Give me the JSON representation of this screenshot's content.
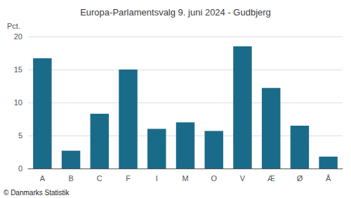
{
  "chart_data": {
    "type": "bar",
    "title": "Europa-Parlamentsvalg 9. juni 2024 - Gudbjerg",
    "categories": [
      "A",
      "B",
      "C",
      "F",
      "I",
      "M",
      "O",
      "V",
      "Æ",
      "Ø",
      "Å"
    ],
    "values": [
      16.7,
      2.7,
      8.3,
      15.0,
      6.0,
      7.0,
      5.7,
      18.5,
      12.2,
      6.5,
      1.8
    ],
    "color": "#1a6b8a",
    "ylabel": "Pct.",
    "ylim": [
      0,
      20
    ],
    "yticks": [
      0,
      5,
      10,
      15,
      20
    ],
    "grid": true,
    "annotations": [
      "© Danmarks Statistik"
    ]
  }
}
